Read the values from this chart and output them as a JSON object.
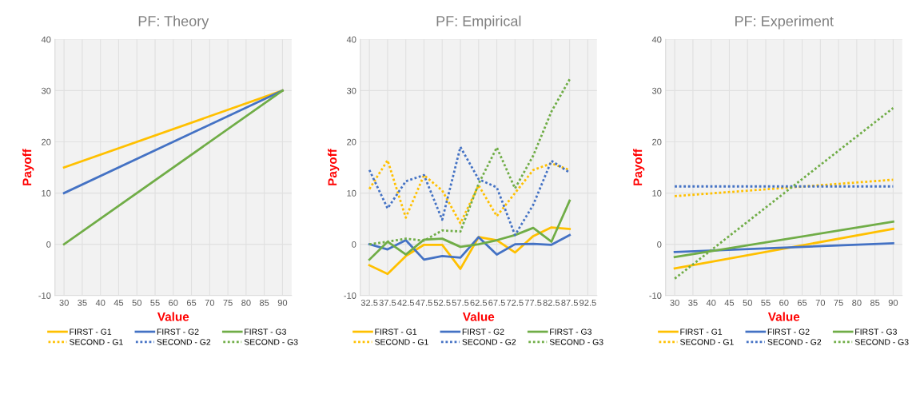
{
  "chart_data": [
    {
      "type": "line",
      "title": "PF: Theory",
      "xlabel": "Value",
      "ylabel": "Payoff",
      "xlim": [
        27.5,
        92.5
      ],
      "xticks": [
        30,
        35,
        40,
        45,
        50,
        55,
        60,
        65,
        70,
        75,
        80,
        85,
        90
      ],
      "ylim": [
        -10,
        40
      ],
      "yticks": [
        -10,
        0,
        10,
        20,
        30,
        40
      ],
      "grid": true,
      "legend": "bottom",
      "series": [
        {
          "name": "FIRST - G1",
          "color": "#ffc000",
          "line_style": "solid",
          "x": [
            30,
            90
          ],
          "values": [
            15,
            30
          ]
        },
        {
          "name": "FIRST - G2",
          "color": "#4472c4",
          "line_style": "solid",
          "x": [
            30,
            90
          ],
          "values": [
            10,
            30
          ]
        },
        {
          "name": "FIRST - G3",
          "color": "#70ad47",
          "line_style": "solid",
          "x": [
            30,
            90
          ],
          "values": [
            0,
            30
          ]
        },
        {
          "name": "SECOND - G1",
          "color": "#ffc000",
          "line_style": "dotted"
        },
        {
          "name": "SECOND - G2",
          "color": "#4472c4",
          "line_style": "dotted"
        },
        {
          "name": "SECOND - G3",
          "color": "#70ad47",
          "line_style": "dotted"
        }
      ]
    },
    {
      "type": "line",
      "title": "PF: Empirical",
      "xlabel": "Value",
      "ylabel": "Payoff",
      "xlim": [
        30,
        95
      ],
      "xticks": [
        32.5,
        37.5,
        42.5,
        47.5,
        52.5,
        57.5,
        62.5,
        67.5,
        72.5,
        77.5,
        82.5,
        87.5,
        92.5
      ],
      "ylim": [
        -10,
        40
      ],
      "yticks": [
        -10,
        0,
        10,
        20,
        30,
        40
      ],
      "grid": true,
      "legend": "bottom",
      "series": [
        {
          "name": "FIRST - G1",
          "color": "#ffc000",
          "line_style": "solid",
          "x": [
            32.5,
            37.5,
            42.5,
            47.5,
            52.5,
            57.5,
            62.5,
            67.5,
            72.5,
            77.5,
            82.5,
            87.5
          ],
          "values": [
            -4.1,
            -5.8,
            -2.3,
            -0.1,
            -0.1,
            -4.8,
            1.4,
            0.8,
            -1.6,
            1.6,
            3.3,
            3.0
          ]
        },
        {
          "name": "FIRST - G2",
          "color": "#4472c4",
          "line_style": "solid",
          "x": [
            32.5,
            37.5,
            42.5,
            47.5,
            52.5,
            57.5,
            62.5,
            67.5,
            72.5,
            77.5,
            82.5,
            87.5
          ],
          "values": [
            0,
            -1,
            0.8,
            -3,
            -2.3,
            -2.6,
            1.4,
            -2,
            0,
            0.1,
            -0.1,
            1.8
          ]
        },
        {
          "name": "FIRST - G3",
          "color": "#70ad47",
          "line_style": "solid",
          "x": [
            32.5,
            37.5,
            42.5,
            47.5,
            52.5,
            57.5,
            62.5,
            67.5,
            72.5,
            77.5,
            82.5,
            87.5
          ],
          "values": [
            -3,
            0.5,
            -2,
            0.9,
            1.1,
            -0.5,
            0,
            0.8,
            1.8,
            3.2,
            0.5,
            8.5
          ]
        },
        {
          "name": "SECOND - G1",
          "color": "#ffc000",
          "line_style": "dotted",
          "x": [
            32.5,
            37.5,
            42.5,
            47.5,
            52.5,
            57.5,
            62.5,
            67.5,
            72.5,
            77.5,
            82.5,
            87.5
          ],
          "values": [
            10.8,
            16.4,
            5.2,
            13.5,
            10.5,
            4.1,
            11.5,
            5.5,
            10,
            14.5,
            15.8,
            14.5
          ]
        },
        {
          "name": "SECOND - G2",
          "color": "#4472c4",
          "line_style": "dotted",
          "x": [
            32.5,
            37.5,
            42.5,
            47.5,
            52.5,
            57.5,
            62.5,
            67.5,
            72.5,
            77.5,
            82.5,
            87.5
          ],
          "values": [
            14.5,
            7,
            12.3,
            13.5,
            4.8,
            19,
            12.7,
            11.1,
            1.8,
            7.7,
            16.3,
            14
          ]
        },
        {
          "name": "SECOND - G3",
          "color": "#70ad47",
          "line_style": "dotted",
          "x": [
            32.5,
            37.5,
            42.5,
            47.5,
            52.5,
            57.5,
            62.5,
            67.5,
            72.5,
            77.5,
            82.5,
            87.5
          ],
          "values": [
            0,
            0.5,
            1.1,
            0.7,
            2.7,
            2.5,
            11.8,
            18.9,
            10.9,
            17.3,
            25.9,
            32.2
          ]
        }
      ]
    },
    {
      "type": "line",
      "title": "PF: Experiment",
      "xlabel": "Value",
      "ylabel": "Payoff",
      "xlim": [
        27.5,
        92.5
      ],
      "xticks": [
        30,
        35,
        40,
        45,
        50,
        55,
        60,
        65,
        70,
        75,
        80,
        85,
        90
      ],
      "ylim": [
        -10,
        40
      ],
      "yticks": [
        -10,
        0,
        10,
        20,
        30,
        40
      ],
      "grid": true,
      "legend": "bottom",
      "series": [
        {
          "name": "FIRST - G1",
          "color": "#ffc000",
          "line_style": "solid",
          "x": [
            30,
            90
          ],
          "values": [
            -4.7,
            3.0
          ]
        },
        {
          "name": "FIRST - G2",
          "color": "#4472c4",
          "line_style": "solid",
          "x": [
            30,
            90
          ],
          "values": [
            -1.5,
            0.2
          ]
        },
        {
          "name": "FIRST - G3",
          "color": "#70ad47",
          "line_style": "solid",
          "x": [
            30,
            90
          ],
          "values": [
            -2.5,
            4.4
          ]
        },
        {
          "name": "SECOND - G1",
          "color": "#ffc000",
          "line_style": "dotted",
          "x": [
            30,
            90
          ],
          "values": [
            9.4,
            12.6
          ]
        },
        {
          "name": "SECOND - G2",
          "color": "#4472c4",
          "line_style": "dotted",
          "x": [
            30,
            90
          ],
          "values": [
            11.3,
            11.3
          ]
        },
        {
          "name": "SECOND - G3",
          "color": "#70ad47",
          "line_style": "dotted",
          "x": [
            30,
            90
          ],
          "values": [
            -6.7,
            26.6
          ]
        }
      ]
    }
  ]
}
